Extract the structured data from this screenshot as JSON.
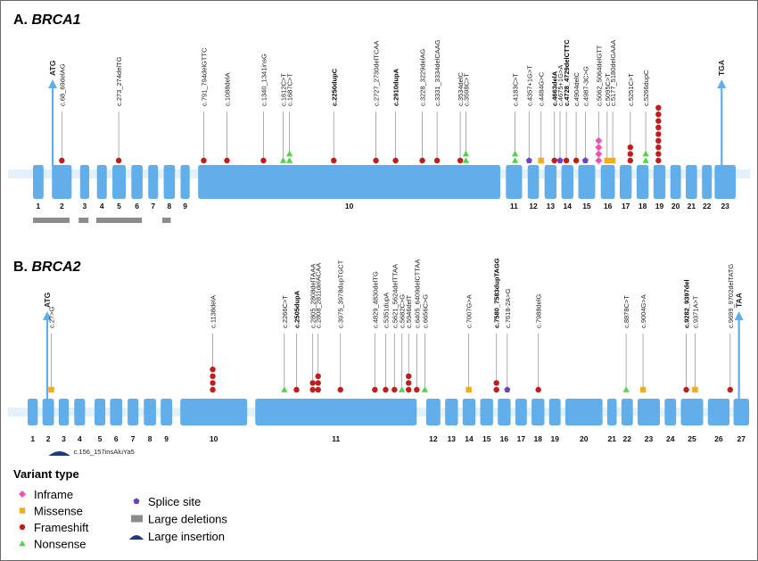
{
  "colors": {
    "exon": "#62aeea",
    "backbone": "#e2f1fb",
    "leader": "#9a9a9a",
    "large_deletion": "#8c8c8c",
    "large_insertion": "#1f3b7a",
    "inframe": "#f04fb4",
    "missense": "#f5ac1a",
    "frameshift": "#c41c1c",
    "nonsense": "#54d24e",
    "splice": "#6842c8"
  },
  "panels": [
    {
      "id": "brca1",
      "title_prefix": "A. ",
      "gene": "BRCA1",
      "scale": {
        "min": 0,
        "max": 100
      },
      "exons": [
        {
          "label": "1",
          "start": 0.0,
          "end": 1.5
        },
        {
          "label": "2",
          "start": 2.7,
          "end": 5.5
        },
        {
          "label": "3",
          "start": 6.7,
          "end": 8.0
        },
        {
          "label": "4",
          "start": 9.1,
          "end": 10.5
        },
        {
          "label": "5",
          "start": 11.3,
          "end": 13.2
        },
        {
          "label": "6",
          "start": 14.0,
          "end": 15.6
        },
        {
          "label": "7",
          "start": 16.4,
          "end": 17.8
        },
        {
          "label": "8",
          "start": 18.6,
          "end": 20.2
        },
        {
          "label": "9",
          "start": 21.0,
          "end": 22.3
        },
        {
          "label": "10",
          "start": 23.5,
          "end": 66.5
        },
        {
          "label": "11",
          "start": 67.3,
          "end": 69.6
        },
        {
          "label": "12",
          "start": 70.4,
          "end": 72.0
        },
        {
          "label": "13",
          "start": 72.8,
          "end": 74.5
        },
        {
          "label": "14",
          "start": 75.2,
          "end": 76.9
        },
        {
          "label": "15",
          "start": 77.6,
          "end": 80.0
        },
        {
          "label": "16",
          "start": 80.8,
          "end": 82.8
        },
        {
          "label": "17",
          "start": 83.5,
          "end": 85.2
        },
        {
          "label": "18",
          "start": 85.9,
          "end": 87.6
        },
        {
          "label": "19",
          "start": 88.3,
          "end": 90.0
        },
        {
          "label": "20",
          "start": 90.7,
          "end": 92.2
        },
        {
          "label": "21",
          "start": 92.9,
          "end": 94.5
        },
        {
          "label": "22",
          "start": 95.2,
          "end": 96.6
        },
        {
          "label": "23",
          "start": 97.0,
          "end": 100.0
        }
      ],
      "codons": [
        {
          "label": "ATG",
          "pos": 2.8
        },
        {
          "label": "TGA",
          "pos": 98.0
        }
      ],
      "deletions": [
        {
          "start": 0.0,
          "end": 5.2
        },
        {
          "start": 6.5,
          "end": 7.9
        },
        {
          "start": 9.0,
          "end": 15.5
        },
        {
          "start": 18.4,
          "end": 19.6
        }
      ],
      "insertions": [],
      "variants": [
        {
          "label": "c.68_69delAG",
          "pos": 4.1,
          "type": "frameshift",
          "count": 1
        },
        {
          "label": "c.273_274delTG",
          "pos": 12.2,
          "type": "frameshift",
          "count": 1
        },
        {
          "label": "c.791_794delGTTC",
          "pos": 24.3,
          "type": "frameshift",
          "count": 1
        },
        {
          "label": "c.1088delA",
          "pos": 27.6,
          "type": "frameshift",
          "count": 1
        },
        {
          "label": "c.1340_1341insG",
          "pos": 32.8,
          "type": "frameshift",
          "count": 1
        },
        {
          "label": "c.1612C>T",
          "pos": 35.6,
          "type": "nonsense",
          "count": 1
        },
        {
          "label": "c.1687C>T",
          "pos": 36.5,
          "type": "nonsense",
          "count": 2
        },
        {
          "label": "c.2250dupC",
          "pos": 42.8,
          "type": "frameshift",
          "count": 1,
          "bold": true
        },
        {
          "label": "c.2727_2730delTCAA",
          "pos": 48.8,
          "type": "frameshift",
          "count": 1
        },
        {
          "label": "c.2910dupA",
          "pos": 51.6,
          "type": "frameshift",
          "count": 1,
          "bold": true
        },
        {
          "label": "c.3228_3229delAG",
          "pos": 55.4,
          "type": "frameshift",
          "count": 1
        },
        {
          "label": "c.3331_3334delCAAG",
          "pos": 57.5,
          "type": "frameshift",
          "count": 1
        },
        {
          "label": "c.3534delC",
          "pos": 60.8,
          "type": "frameshift",
          "count": 1
        },
        {
          "label": "c.3598C>T",
          "pos": 61.6,
          "type": "nonsense",
          "count": 2
        },
        {
          "label": "c.4183C>T",
          "pos": 68.6,
          "type": "nonsense",
          "count": 2
        },
        {
          "label": "c.4357+1G>T",
          "pos": 70.6,
          "type": "splice",
          "count": 1
        },
        {
          "label": "c.4484G>C",
          "pos": 72.3,
          "type": "missense",
          "count": 1
        },
        {
          "label": "c.4663delA",
          "pos": 74.2,
          "type": "frameshift",
          "count": 1,
          "bold": true
        },
        {
          "label": "c.4675+1G>A",
          "pos": 75.0,
          "type": "splice",
          "count": 1
        },
        {
          "label": "c.4728_4729delCTTC",
          "pos": 75.9,
          "type": "frameshift",
          "count": 1,
          "bold": true
        },
        {
          "label": "c.4904delC",
          "pos": 77.3,
          "type": "frameshift",
          "count": 1
        },
        {
          "label": "c.4987-3C>G",
          "pos": 78.6,
          "type": "splice",
          "count": 1
        },
        {
          "label": "c.5062_5064delGTT",
          "pos": 80.5,
          "type": "inframe",
          "count": 4
        },
        {
          "label": "c.5095C>T",
          "pos": 81.7,
          "type": "missense",
          "count": 1
        },
        {
          "label": "c.5177_5180delGAAA",
          "pos": 82.5,
          "type": "missense",
          "count": 1
        },
        {
          "label": "c.5251C>T",
          "pos": 85.0,
          "type": "frameshift",
          "count": 3
        },
        {
          "label": "c.5266dupC",
          "pos": 87.2,
          "type": "nonsense",
          "count": 2
        },
        {
          "label": "",
          "pos": 89.0,
          "type": "frameshift",
          "count": 9
        }
      ]
    },
    {
      "id": "brca2",
      "title_prefix": "B. ",
      "gene": "BRCA2",
      "scale": {
        "min": 0,
        "max": 100
      },
      "exons": [
        {
          "label": "1",
          "start": 0.0,
          "end": 1.5
        },
        {
          "label": "2",
          "start": 2.2,
          "end": 3.9
        },
        {
          "label": "3",
          "start": 4.6,
          "end": 6.1
        },
        {
          "label": "4",
          "start": 6.9,
          "end": 8.5
        },
        {
          "label": "5",
          "start": 9.9,
          "end": 11.5
        },
        {
          "label": "6",
          "start": 12.2,
          "end": 14.0
        },
        {
          "label": "7",
          "start": 14.8,
          "end": 16.4
        },
        {
          "label": "8",
          "start": 17.2,
          "end": 19.0
        },
        {
          "label": "9",
          "start": 19.7,
          "end": 21.4
        },
        {
          "label": "10",
          "start": 22.6,
          "end": 32.5
        },
        {
          "label": "11",
          "start": 33.7,
          "end": 57.6
        },
        {
          "label": "12",
          "start": 59.0,
          "end": 61.1
        },
        {
          "label": "13",
          "start": 61.8,
          "end": 63.7
        },
        {
          "label": "14",
          "start": 64.4,
          "end": 66.3
        },
        {
          "label": "15",
          "start": 67.0,
          "end": 68.9
        },
        {
          "label": "16",
          "start": 69.6,
          "end": 71.5
        },
        {
          "label": "17",
          "start": 72.2,
          "end": 73.9
        },
        {
          "label": "18",
          "start": 74.6,
          "end": 76.5
        },
        {
          "label": "19",
          "start": 77.2,
          "end": 78.9
        },
        {
          "label": "20",
          "start": 79.6,
          "end": 85.1
        },
        {
          "label": "21",
          "start": 85.8,
          "end": 87.2
        },
        {
          "label": "22",
          "start": 87.9,
          "end": 89.6
        },
        {
          "label": "23",
          "start": 90.3,
          "end": 93.6
        },
        {
          "label": "24",
          "start": 94.3,
          "end": 96.0
        },
        {
          "label": "25",
          "start": 96.7,
          "end": 100.0
        },
        {
          "label": "26",
          "start": 100.7,
          "end": 103.9
        },
        {
          "label": "27",
          "start": 104.5,
          "end": 106.8
        }
      ],
      "codons": [
        {
          "label": "ATG",
          "pos": 2.9
        },
        {
          "label": "TAA",
          "pos": 105.3
        }
      ],
      "deletions": [],
      "insertions": [
        {
          "label": "c.156_157insAluYa5",
          "pos": 4.7
        }
      ],
      "variants": [
        {
          "label": "c.27>G",
          "pos": 3.5,
          "type": "missense",
          "count": 1
        },
        {
          "label": "c.1138delA",
          "pos": 27.4,
          "type": "frameshift",
          "count": 4
        },
        {
          "label": "c.2266C>T",
          "pos": 38.0,
          "type": "nonsense",
          "count": 1
        },
        {
          "label": "c.2505dupA",
          "pos": 39.8,
          "type": "frameshift",
          "count": 1,
          "bold": true
        },
        {
          "label": "c.2805_2808delTAAA",
          "pos": 42.2,
          "type": "frameshift",
          "count": 2
        },
        {
          "label": "c.2808_2811delACAA",
          "pos": 43.0,
          "type": "frameshift",
          "count": 3
        },
        {
          "label": "c.3975_3978dupTGCT",
          "pos": 46.3,
          "type": "frameshift",
          "count": 1
        },
        {
          "label": "c.4829_4830delTG",
          "pos": 51.4,
          "type": "frameshift",
          "count": 1
        },
        {
          "label": "c.5351dupA",
          "pos": 53.0,
          "type": "frameshift",
          "count": 1
        },
        {
          "label": "c.5621_5624delTTAA",
          "pos": 54.3,
          "type": "frameshift",
          "count": 1
        },
        {
          "label": "c.5682C>G",
          "pos": 55.4,
          "type": "nonsense",
          "count": 1
        },
        {
          "label": "c.5946delT",
          "pos": 56.4,
          "type": "frameshift",
          "count": 3
        },
        {
          "label": "c.6405_6409delCTTAA",
          "pos": 57.6,
          "type": "frameshift",
          "count": 1
        },
        {
          "label": "c.6656C>G",
          "pos": 58.8,
          "type": "nonsense",
          "count": 1
        },
        {
          "label": "c.7007G>A",
          "pos": 65.3,
          "type": "missense",
          "count": 1
        },
        {
          "label": "c.7580_7583dupTAGG",
          "pos": 69.4,
          "type": "frameshift",
          "count": 2,
          "bold": true
        },
        {
          "label": "c.7618-2A>G",
          "pos": 71.0,
          "type": "splice",
          "count": 1
        },
        {
          "label": "c.7988delG",
          "pos": 75.6,
          "type": "frameshift",
          "count": 1
        },
        {
          "label": "c.8878C>T",
          "pos": 88.6,
          "type": "nonsense",
          "count": 1
        },
        {
          "label": "c.9004G>A",
          "pos": 91.1,
          "type": "missense",
          "count": 1
        },
        {
          "label": "c.9282_9397del",
          "pos": 97.5,
          "type": "frameshift",
          "count": 1,
          "bold": true
        },
        {
          "label": "c.9371A>T",
          "pos": 98.8,
          "type": "missense",
          "count": 1
        },
        {
          "label": "c.9699_9702delTATG",
          "pos": 104.0,
          "type": "frameshift",
          "count": 1
        }
      ]
    }
  ],
  "legend": {
    "title": "Variant type",
    "items": [
      {
        "label": "Inframe",
        "type": "inframe"
      },
      {
        "label": "Missense",
        "type": "missense"
      },
      {
        "label": "Frameshift",
        "type": "frameshift"
      },
      {
        "label": "Nonsense",
        "type": "nonsense"
      },
      {
        "label": "Splice site",
        "type": "splice"
      },
      {
        "label": "Large deletions",
        "type": "deletion"
      },
      {
        "label": "Large insertion",
        "type": "insertion"
      }
    ]
  }
}
